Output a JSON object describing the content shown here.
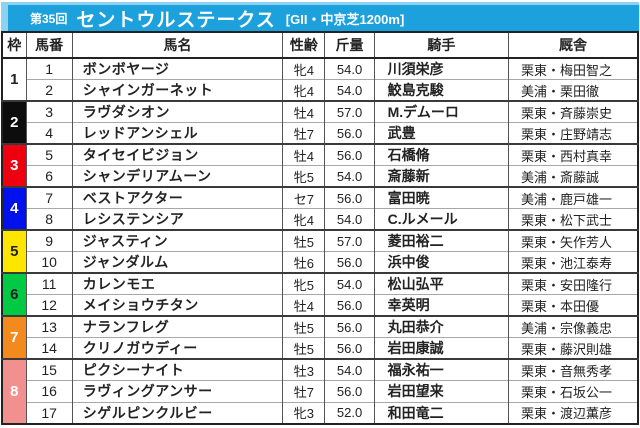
{
  "header": {
    "race_round": "第35回",
    "race_name": "セントウルステークス",
    "race_conditions": "[GII・中京芝1200m]",
    "bar_color": "#1ca1dc",
    "bar_accent_color": "#8ed2f1",
    "text_color": "#ffffff"
  },
  "table": {
    "columns": [
      "枠",
      "馬番",
      "馬名",
      "性齢",
      "斤量",
      "騎手",
      "厩舎"
    ],
    "frames": [
      {
        "number": "1",
        "bg": "#ffffff",
        "fg": "#222222"
      },
      {
        "number": "2",
        "bg": "#0d0d0d",
        "fg": "#ffffff"
      },
      {
        "number": "3",
        "bg": "#ee0011",
        "fg": "#ffffff"
      },
      {
        "number": "4",
        "bg": "#0011ee",
        "fg": "#ffffff"
      },
      {
        "number": "5",
        "bg": "#ffe600",
        "fg": "#222222"
      },
      {
        "number": "6",
        "bg": "#00c944",
        "fg": "#222222"
      },
      {
        "number": "7",
        "bg": "#f28a1d",
        "fg": "#ffffff"
      },
      {
        "number": "8",
        "bg": "#f29090",
        "fg": "#ffffff"
      }
    ],
    "horses": [
      {
        "frame": "1",
        "number": "1",
        "name": "ボンボヤージ",
        "sex_age": "牝4",
        "weight": "54.0",
        "jockey": "川須栄彦",
        "stable": "栗東・梅田智之"
      },
      {
        "frame": "1",
        "number": "2",
        "name": "シャインガーネット",
        "sex_age": "牝4",
        "weight": "54.0",
        "jockey": "鮫島克駿",
        "stable": "美浦・栗田徹"
      },
      {
        "frame": "2",
        "number": "3",
        "name": "ラヴダシオン",
        "sex_age": "牡4",
        "weight": "57.0",
        "jockey": "M.デムーロ",
        "stable": "栗東・斉藤崇史"
      },
      {
        "frame": "2",
        "number": "4",
        "name": "レッドアンシェル",
        "sex_age": "牡7",
        "weight": "56.0",
        "jockey": "武豊",
        "stable": "栗東・庄野靖志"
      },
      {
        "frame": "3",
        "number": "5",
        "name": "タイセイビジョン",
        "sex_age": "牡4",
        "weight": "56.0",
        "jockey": "石橋脩",
        "stable": "栗東・西村真幸"
      },
      {
        "frame": "3",
        "number": "6",
        "name": "シャンデリアムーン",
        "sex_age": "牝5",
        "weight": "54.0",
        "jockey": "斎藤新",
        "stable": "美浦・斎藤誠"
      },
      {
        "frame": "4",
        "number": "7",
        "name": "ベストアクター",
        "sex_age": "セ7",
        "weight": "56.0",
        "jockey": "富田暁",
        "stable": "美浦・鹿戸雄一"
      },
      {
        "frame": "4",
        "number": "8",
        "name": "レシステンシア",
        "sex_age": "牝4",
        "weight": "54.0",
        "jockey": "C.ルメール",
        "stable": "栗東・松下武士"
      },
      {
        "frame": "5",
        "number": "9",
        "name": "ジャスティン",
        "sex_age": "牡5",
        "weight": "57.0",
        "jockey": "菱田裕二",
        "stable": "栗東・矢作芳人"
      },
      {
        "frame": "5",
        "number": "10",
        "name": "ジャンダルム",
        "sex_age": "牡6",
        "weight": "56.0",
        "jockey": "浜中俊",
        "stable": "栗東・池江泰寿"
      },
      {
        "frame": "6",
        "number": "11",
        "name": "カレンモエ",
        "sex_age": "牝5",
        "weight": "54.0",
        "jockey": "松山弘平",
        "stable": "栗東・安田隆行"
      },
      {
        "frame": "6",
        "number": "12",
        "name": "メイショウチタン",
        "sex_age": "牡4",
        "weight": "56.0",
        "jockey": "幸英明",
        "stable": "栗東・本田優"
      },
      {
        "frame": "7",
        "number": "13",
        "name": "ナランフレグ",
        "sex_age": "牡5",
        "weight": "56.0",
        "jockey": "丸田恭介",
        "stable": "美浦・宗像義忠"
      },
      {
        "frame": "7",
        "number": "14",
        "name": "クリノガウディー",
        "sex_age": "牡5",
        "weight": "56.0",
        "jockey": "岩田康誠",
        "stable": "栗東・藤沢則雄"
      },
      {
        "frame": "8",
        "number": "15",
        "name": "ピクシーナイト",
        "sex_age": "牡3",
        "weight": "54.0",
        "jockey": "福永祐一",
        "stable": "栗東・音無秀孝"
      },
      {
        "frame": "8",
        "number": "16",
        "name": "ラヴィングアンサー",
        "sex_age": "牡7",
        "weight": "56.0",
        "jockey": "岩田望来",
        "stable": "栗東・石坂公一"
      },
      {
        "frame": "8",
        "number": "17",
        "name": "シゲルピンクルビー",
        "sex_age": "牝3",
        "weight": "52.0",
        "jockey": "和田竜二",
        "stable": "栗東・渡辺薫彦"
      }
    ]
  }
}
